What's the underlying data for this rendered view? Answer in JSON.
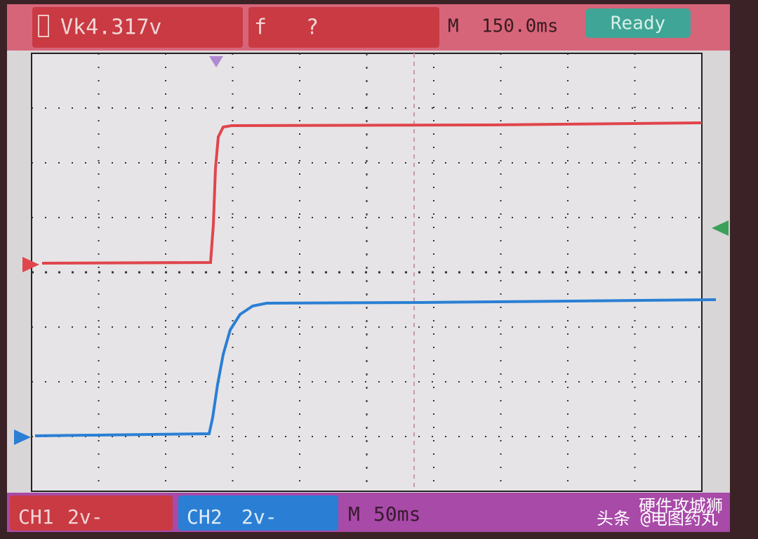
{
  "header": {
    "voltage": "Vk4.317v",
    "frequency_label": "f",
    "frequency_value": "?",
    "timebase_label": "M",
    "timebase_value": "150.0ms",
    "status": "Ready"
  },
  "footer": {
    "ch1_label": "CH1",
    "ch1_scale": "2v-",
    "ch2_label": "CH2",
    "ch2_scale": "2v-",
    "timebase_label": "M",
    "timebase_value": "50ms"
  },
  "watermark": {
    "line1": "硬件攻城狮",
    "line2": "头条 @电图药丸"
  }
}
